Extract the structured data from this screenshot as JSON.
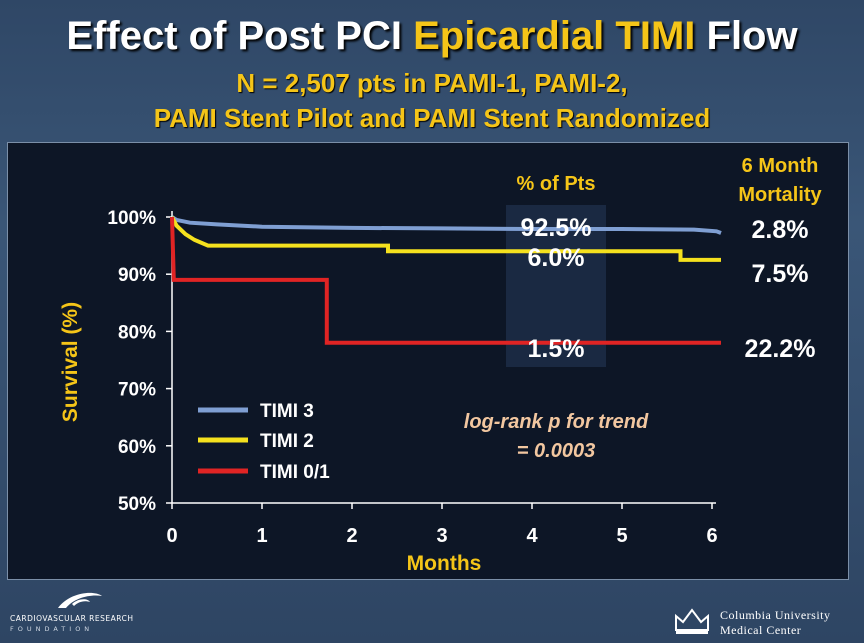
{
  "header": {
    "title_part1": "Effect of Post PCI ",
    "title_highlight": "Epicardial TIMI",
    "title_part2": " Flow",
    "subtitle_line1": "N = 2,507 pts in PAMI-1, PAMI-2,",
    "subtitle_line2": "PAMI Stent Pilot and PAMI Stent Randomized"
  },
  "chart_data": {
    "type": "line",
    "title": "Effect of Post PCI Epicardial TIMI Flow",
    "xlabel": "Months",
    "ylabel": "Survival (%)",
    "xlim": [
      0,
      6
    ],
    "ylim": [
      50,
      100
    ],
    "x_ticks": [
      "0",
      "1",
      "2",
      "3",
      "4",
      "5",
      "6"
    ],
    "y_ticks": [
      "50%",
      "60%",
      "70%",
      "80%",
      "90%",
      "100%"
    ],
    "grid": false,
    "legend_position": "bottom-left",
    "series": [
      {
        "name": "TIMI 3",
        "color": "#7f9fd3",
        "points": [
          [
            0,
            100
          ],
          [
            0.05,
            99.5
          ],
          [
            0.2,
            99
          ],
          [
            0.5,
            98.7
          ],
          [
            1,
            98.3
          ],
          [
            2,
            98.1
          ],
          [
            3,
            98
          ],
          [
            4,
            97.9
          ],
          [
            5,
            97.9
          ],
          [
            5.8,
            97.8
          ],
          [
            6.05,
            97.5
          ],
          [
            6.1,
            97.2
          ]
        ],
        "pct_pts": "92.5%",
        "mortality": "2.8%"
      },
      {
        "name": "TIMI 2",
        "color": "#f5e11e",
        "points": [
          [
            0,
            100
          ],
          [
            0.05,
            98.5
          ],
          [
            0.15,
            97
          ],
          [
            0.25,
            96
          ],
          [
            0.4,
            95
          ],
          [
            1,
            95
          ],
          [
            2.4,
            95
          ],
          [
            2.4,
            94
          ],
          [
            4.5,
            94
          ],
          [
            5.65,
            94
          ],
          [
            5.65,
            92.5
          ],
          [
            6.1,
            92.5
          ]
        ],
        "pct_pts": "6.0%",
        "mortality": "7.5%"
      },
      {
        "name": "TIMI 0/1",
        "color": "#e02424",
        "points": [
          [
            0,
            100
          ],
          [
            0.02,
            89
          ],
          [
            1.72,
            89
          ],
          [
            1.72,
            78
          ],
          [
            3,
            78
          ],
          [
            4,
            78
          ],
          [
            5,
            78
          ],
          [
            6.1,
            78
          ]
        ],
        "pct_pts": "1.5%",
        "mortality": "22.2%"
      }
    ],
    "column_headers": {
      "pct_pts": "% of Pts",
      "mortality_line1": "6 Month",
      "mortality_line2": "Mortality"
    },
    "annotation_line1": "log-rank p for trend",
    "annotation_line2": "= 0.0003"
  },
  "footer": {
    "left_logo_line1": "CARDIOVASCULAR RESEARCH",
    "left_logo_line2": "FOUNDATION",
    "right_logo_line1": "Columbia University",
    "right_logo_line2": "Medical Center"
  }
}
